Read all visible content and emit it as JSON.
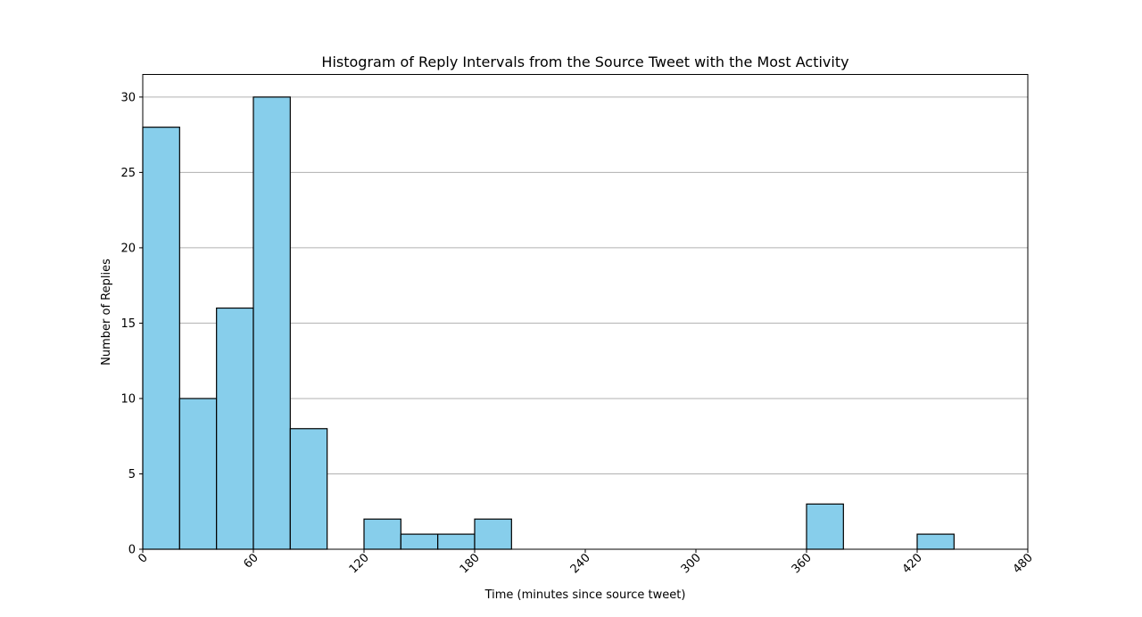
{
  "chart_data": {
    "type": "bar",
    "title": "Histogram of Reply Intervals from the Source Tweet with the Most Activity",
    "xlabel": "Time (minutes since source tweet)",
    "ylabel": "Number of Replies",
    "xlim": [
      0,
      480
    ],
    "ylim": [
      0,
      31.5
    ],
    "xticks": [
      0,
      60,
      120,
      180,
      240,
      300,
      360,
      420,
      480
    ],
    "yticks": [
      0,
      5,
      10,
      15,
      20,
      25,
      30
    ],
    "grid": "y-axis",
    "bar_color": "#87ceeb",
    "edge_color": "#000000",
    "grid_color": "#b0b0b0",
    "bins": [
      {
        "start": 0,
        "end": 20,
        "count": 28
      },
      {
        "start": 20,
        "end": 40,
        "count": 10
      },
      {
        "start": 40,
        "end": 60,
        "count": 16
      },
      {
        "start": 60,
        "end": 80,
        "count": 30
      },
      {
        "start": 80,
        "end": 100,
        "count": 8
      },
      {
        "start": 100,
        "end": 120,
        "count": 0
      },
      {
        "start": 120,
        "end": 140,
        "count": 2
      },
      {
        "start": 140,
        "end": 160,
        "count": 1
      },
      {
        "start": 160,
        "end": 180,
        "count": 1
      },
      {
        "start": 180,
        "end": 200,
        "count": 2
      },
      {
        "start": 200,
        "end": 220,
        "count": 0
      },
      {
        "start": 220,
        "end": 240,
        "count": 0
      },
      {
        "start": 240,
        "end": 260,
        "count": 0
      },
      {
        "start": 260,
        "end": 280,
        "count": 0
      },
      {
        "start": 280,
        "end": 300,
        "count": 0
      },
      {
        "start": 300,
        "end": 320,
        "count": 0
      },
      {
        "start": 320,
        "end": 340,
        "count": 0
      },
      {
        "start": 340,
        "end": 360,
        "count": 0
      },
      {
        "start": 360,
        "end": 380,
        "count": 3
      },
      {
        "start": 380,
        "end": 400,
        "count": 0
      },
      {
        "start": 400,
        "end": 420,
        "count": 0
      },
      {
        "start": 420,
        "end": 440,
        "count": 1
      }
    ]
  }
}
